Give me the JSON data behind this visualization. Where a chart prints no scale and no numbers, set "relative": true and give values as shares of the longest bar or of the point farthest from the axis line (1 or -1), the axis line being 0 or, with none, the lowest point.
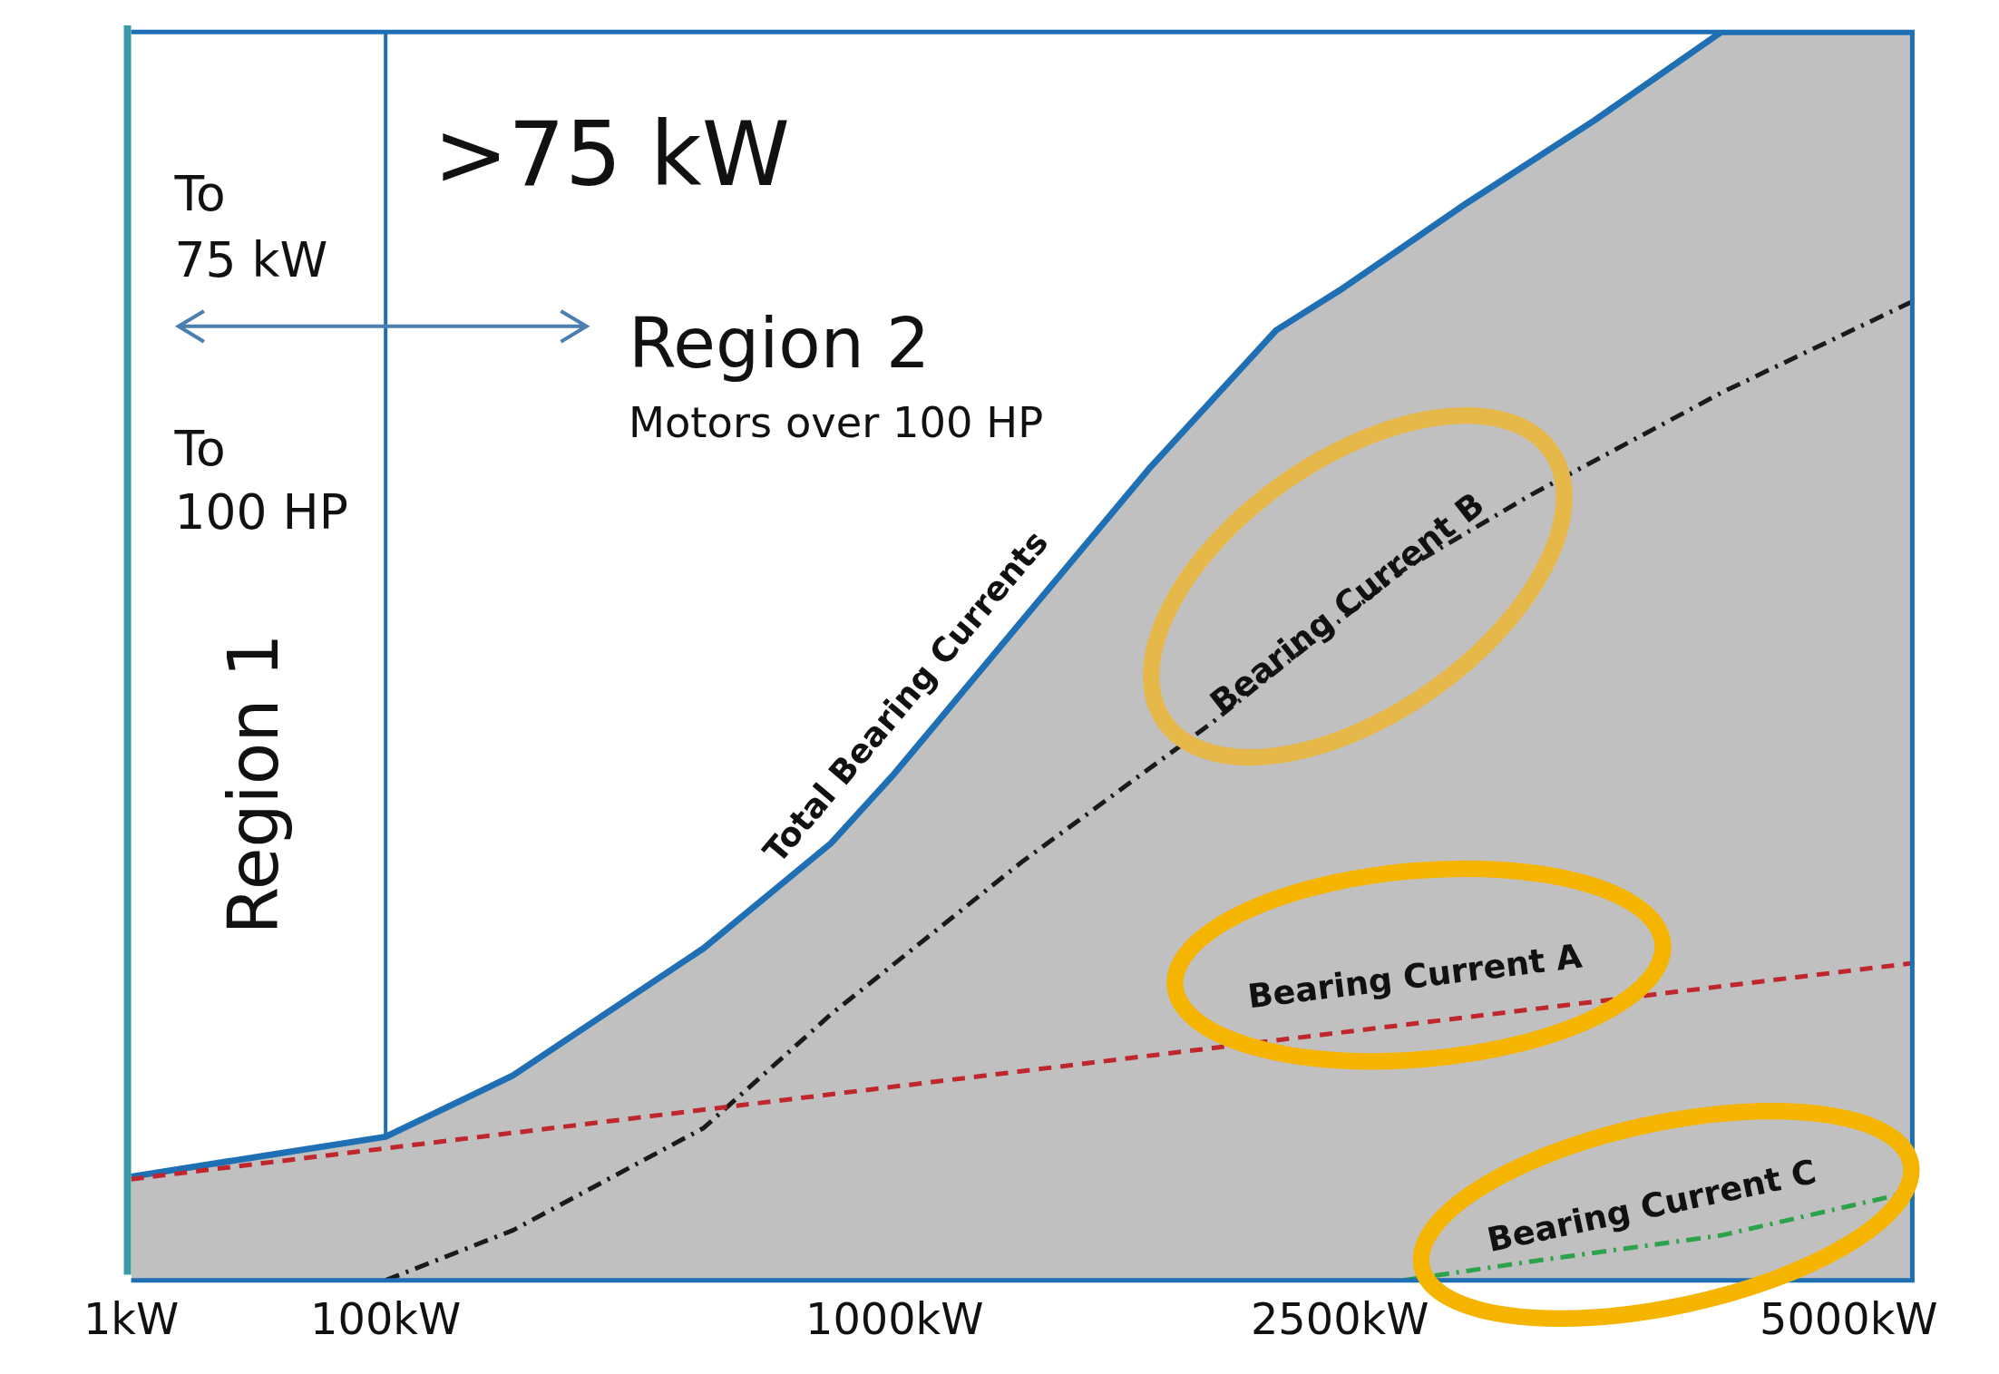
{
  "chart_data": {
    "type": "area",
    "relative": true,
    "legend": false,
    "grid": false,
    "categories": [
      "1kW",
      null,
      null,
      null,
      "100kW",
      null,
      null,
      null,
      null,
      null,
      null,
      null,
      "1000kW",
      null,
      null,
      null,
      null,
      null,
      null,
      "2500kW",
      null,
      null,
      null,
      null,
      null,
      null,
      null,
      "5000kW",
      null
    ],
    "series": [
      {
        "name": "Total Bearing Currents",
        "color": "#1f6fb4",
        "line_style": "solid",
        "values": [
          0.083,
          null,
          null,
          null,
          0.115,
          null,
          0.164,
          null,
          null,
          0.266,
          null,
          0.35,
          0.406,
          null,
          0.528,
          null,
          0.65,
          null,
          0.761,
          0.793,
          null,
          0.863,
          null,
          0.929,
          null,
          1,
          null,
          null,
          1
        ]
      },
      {
        "name": "Bearing Current A",
        "type": "line",
        "color": "#c0272d",
        "line_style": "dashed",
        "values": [
          0.081,
          null,
          null,
          null,
          null,
          null,
          null,
          null,
          null,
          null,
          null,
          null,
          null,
          null,
          null,
          null,
          null,
          null,
          null,
          null,
          null,
          null,
          null,
          null,
          null,
          null,
          null,
          null,
          0.254
        ]
      },
      {
        "name": "Bearing Current B",
        "type": "line",
        "color": "#1a1a1a",
        "line_style": "dashdot",
        "values": [
          null,
          null,
          null,
          null,
          0,
          null,
          0.04,
          null,
          null,
          0.122,
          null,
          0.213,
          null,
          null,
          0.335,
          null,
          null,
          0.447,
          null,
          null,
          0.569,
          null,
          0.629,
          null,
          null,
          0.711,
          null,
          null,
          0.784
        ]
      },
      {
        "name": "Bearing Current C",
        "type": "line",
        "color": "#2ca24a",
        "line_style": "dashdot",
        "values": [
          null,
          null,
          null,
          null,
          null,
          null,
          null,
          null,
          null,
          null,
          null,
          null,
          null,
          null,
          null,
          null,
          null,
          null,
          null,
          null,
          0,
          null,
          0.015,
          null,
          null,
          0.036,
          null,
          null,
          0.071
        ]
      }
    ],
    "ref_lines": [
      {
        "axis": "x",
        "value": "100kW",
        "color": "#1f6fb4"
      }
    ],
    "annotations": [
      ">75 kW",
      "To\n75 kW",
      "Region 2",
      "Motors over 100 HP",
      "To\n100 HP",
      "Region 1"
    ]
  }
}
